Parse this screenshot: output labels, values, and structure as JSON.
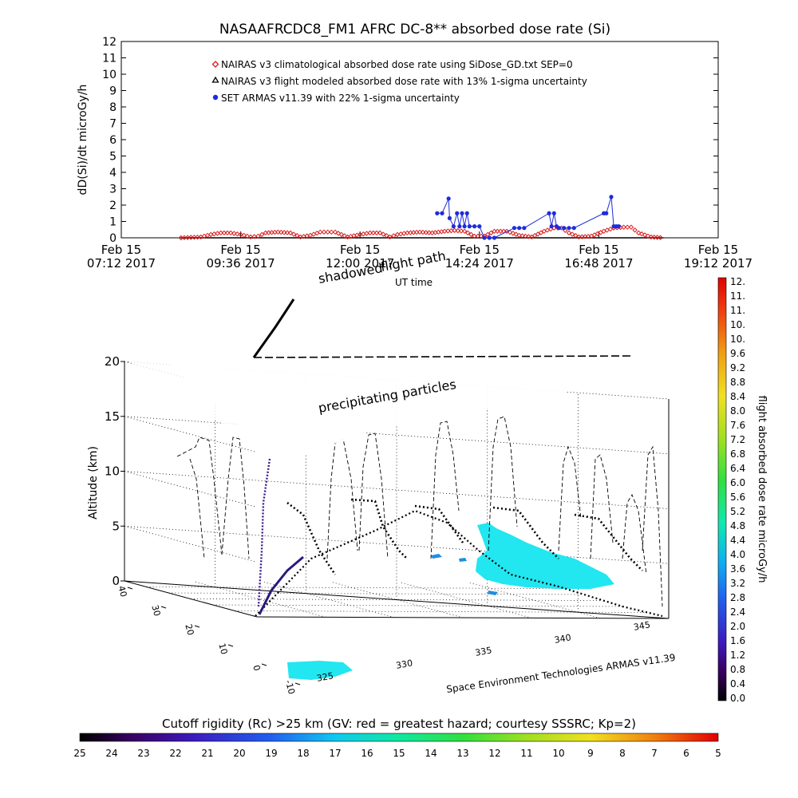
{
  "top_chart": {
    "title": "NASAAFRCDC8_FM1 AFRC DC-8** absorbed dose rate (Si)",
    "ylabel": "dD(Si)/dt microGy/h",
    "xlabel": "UT time",
    "ylim": [
      0,
      12
    ],
    "yticks": [
      "0",
      "1",
      "2",
      "3",
      "4",
      "5",
      "6",
      "7",
      "8",
      "9",
      "10",
      "11",
      "12"
    ],
    "xticks": [
      {
        "top": "Feb 15",
        "bottom": "07:12 2017"
      },
      {
        "top": "Feb 15",
        "bottom": "09:36 2017"
      },
      {
        "top": "Feb 15",
        "bottom": "12:00 2017"
      },
      {
        "top": "Feb 15",
        "bottom": "14:24 2017"
      },
      {
        "top": "Feb 15",
        "bottom": "16:48 2017"
      },
      {
        "top": "Feb 15",
        "bottom": "19:12 2017"
      }
    ],
    "legend": [
      {
        "marker": "diamond",
        "label": "NAIRAS v3 climatological absorbed dose rate using SiDose_GD.txt SEP=0",
        "color": "#d81e1e"
      },
      {
        "marker": "triangle",
        "label": "NAIRAS v3 flight modeled absorbed dose rate with 13% 1-sigma uncertainty",
        "color": "#000000"
      },
      {
        "marker": "circle",
        "label": "SET ARMAS v11.39 with 22% 1-sigma uncertainty",
        "color": "#1f2bdc"
      }
    ]
  },
  "chart_data": [
    {
      "type": "line",
      "title": "NASAAFRCDC8_FM1 AFRC DC-8** absorbed dose rate (Si)",
      "xlabel": "UT time",
      "ylabel": "dD(Si)/dt microGy/h",
      "x_unit": "hours UT",
      "xlim": [
        7.2,
        19.2
      ],
      "ylim": [
        0,
        12
      ],
      "series": [
        {
          "name": "NAIRAS v3 climatological absorbed dose rate using SiDose_GD.txt SEP=0",
          "color": "#d81e1e",
          "x": [
            8.4,
            8.8,
            9.0,
            9.2,
            9.4,
            9.6,
            9.8,
            9.95,
            10.1,
            10.35,
            10.6,
            10.8,
            11.0,
            11.2,
            11.35,
            11.5,
            11.75,
            12.0,
            12.2,
            12.4,
            12.6,
            12.75,
            12.95,
            13.2,
            13.45,
            13.7,
            13.9,
            14.1,
            14.3,
            14.5,
            14.7,
            14.95,
            15.2,
            15.45,
            15.7,
            15.9,
            16.05,
            16.2,
            16.4,
            16.65,
            16.9,
            17.1,
            17.3,
            17.45,
            17.6,
            17.85,
            18.1
          ],
          "values": [
            0.0,
            0.05,
            0.2,
            0.3,
            0.3,
            0.2,
            0.05,
            0.1,
            0.3,
            0.35,
            0.3,
            0.05,
            0.15,
            0.35,
            0.35,
            0.35,
            0.05,
            0.2,
            0.3,
            0.3,
            0.05,
            0.2,
            0.3,
            0.35,
            0.3,
            0.4,
            0.45,
            0.4,
            0.1,
            0.1,
            0.4,
            0.4,
            0.15,
            0.05,
            0.4,
            0.6,
            0.6,
            0.3,
            0.05,
            0.1,
            0.4,
            0.6,
            0.65,
            0.65,
            0.3,
            0.05,
            0.0
          ]
        },
        {
          "name": "SET ARMAS v11.39 with 22% 1-sigma uncertainty",
          "color": "#1f2bdc",
          "x": [
            13.55,
            13.65,
            13.78,
            13.8,
            13.88,
            13.95,
            14.0,
            14.05,
            14.1,
            14.15,
            14.2,
            14.3,
            14.4,
            14.5,
            14.6,
            14.7,
            15.1,
            15.2,
            15.3,
            15.8,
            15.85,
            15.9,
            15.95,
            16.0,
            16.1,
            16.2,
            16.3,
            16.9,
            16.95,
            17.05,
            17.1,
            17.15,
            17.2
          ],
          "values": [
            1.5,
            1.5,
            2.4,
            1.2,
            0.7,
            1.5,
            0.7,
            1.5,
            0.7,
            1.5,
            0.7,
            0.7,
            0.7,
            0.0,
            0.0,
            0.0,
            0.6,
            0.6,
            0.6,
            1.5,
            0.7,
            1.5,
            0.7,
            0.6,
            0.6,
            0.6,
            0.6,
            1.5,
            1.5,
            2.5,
            0.7,
            0.7,
            0.7
          ]
        },
        {
          "name": "NAIRAS v3 flight modeled absorbed dose rate with 13% 1-sigma uncertainty",
          "color": "#000000",
          "x": [],
          "values": []
        }
      ]
    },
    {
      "type": "heatmap",
      "title": "",
      "zlabel": "Altitude (km)",
      "zticks": [
        "0",
        "5",
        "10",
        "15",
        "20"
      ],
      "zlim": [
        0,
        20
      ],
      "lat_ticks": [
        "-10",
        "0",
        "10",
        "20",
        "30",
        "40"
      ],
      "lon_ticks": [
        "325",
        "330",
        "335",
        "340",
        "345"
      ],
      "annotations": [
        "shadowed flight path",
        "precipitating particles"
      ],
      "credit": "Space Environment Technologies ARMAS v11.39",
      "shadowed_label": "shadowed",
      "flight_path_label": "flight path"
    }
  ],
  "dose_colorbar": {
    "label": "flight absorbed dose rate microGy/h",
    "ticks": [
      "12.",
      "11.",
      "11.",
      "10.",
      "10.",
      "9.6",
      "9.2",
      "8.8",
      "8.4",
      "8.0",
      "7.6",
      "7.2",
      "6.8",
      "6.4",
      "6.0",
      "5.6",
      "5.2",
      "4.8",
      "4.4",
      "4.0",
      "3.6",
      "3.2",
      "2.8",
      "2.4",
      "2.0",
      "1.6",
      "1.2",
      "0.8",
      "0.4",
      "0.0"
    ]
  },
  "rigidity_colorbar": {
    "label": "Cutoff rigidity (Rc) >25 km (GV: red = greatest hazard; courtesy SSSRC; Kp=2)",
    "ticks": [
      "25",
      "24",
      "23",
      "22",
      "21",
      "20",
      "19",
      "18",
      "17",
      "16",
      "15",
      "14",
      "13",
      "12",
      "11",
      "10",
      "9",
      "8",
      "7",
      "6",
      "5"
    ]
  },
  "colors": {
    "climatology": "#d81e1e",
    "armas": "#1f2bdc",
    "cyan_region": "#22e6f0"
  }
}
